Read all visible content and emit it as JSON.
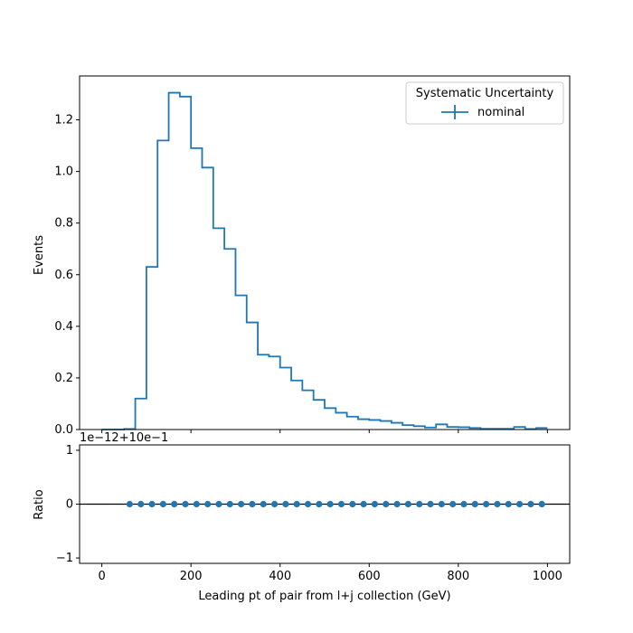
{
  "chart_data": [
    {
      "type": "step",
      "title": "",
      "xlabel": "",
      "ylabel": "Events",
      "xlim": [
        -50,
        1050
      ],
      "ylim": [
        0,
        1.37
      ],
      "x_ticks": [
        0,
        200,
        400,
        600,
        800,
        1000
      ],
      "y_ticks": [
        0.0,
        0.2,
        0.4,
        0.6,
        0.8,
        1.0,
        1.2
      ],
      "y_tick_labels": [
        "0.0",
        "0.2",
        "0.4",
        "0.6",
        "0.8",
        "1.0",
        "1.2"
      ],
      "bin_edges": [
        0,
        25,
        50,
        75,
        100,
        125,
        150,
        175,
        200,
        225,
        250,
        275,
        300,
        325,
        350,
        375,
        400,
        425,
        450,
        475,
        500,
        525,
        550,
        575,
        600,
        625,
        650,
        675,
        700,
        725,
        750,
        775,
        800,
        825,
        850,
        875,
        900,
        925,
        950,
        975,
        1000
      ],
      "series": [
        {
          "name": "nominal",
          "color": "#1f77b4",
          "values": [
            0.0,
            0.0,
            0.002,
            0.12,
            0.63,
            1.12,
            1.305,
            1.29,
            1.09,
            1.015,
            0.78,
            0.7,
            0.52,
            0.415,
            0.29,
            0.283,
            0.24,
            0.19,
            0.152,
            0.115,
            0.083,
            0.065,
            0.05,
            0.04,
            0.037,
            0.033,
            0.026,
            0.017,
            0.013,
            0.008,
            0.02,
            0.01,
            0.009,
            0.006,
            0.003,
            0.003,
            0.003,
            0.01,
            0.002,
            0.006
          ]
        }
      ],
      "legend": {
        "title": "Systematic Uncertainty",
        "placement": "top-right"
      }
    },
    {
      "type": "scatter",
      "title": "",
      "xlabel": "Leading pt of pair from l+j collection (GeV)",
      "ylabel": "Ratio",
      "xlim": [
        -50,
        1050
      ],
      "ylim": [
        -1.1,
        1.1
      ],
      "x_ticks": [
        0,
        200,
        400,
        600,
        800,
        1000
      ],
      "x_tick_labels": [
        "0",
        "200",
        "400",
        "600",
        "800",
        "1000"
      ],
      "y_ticks": [
        -1,
        0,
        1
      ],
      "y_tick_labels": [
        "−1",
        "0",
        "1"
      ],
      "offset_text": "1e−12+10e−1",
      "reference_line": 0,
      "series": [
        {
          "name": "",
          "color": "#1f77b4",
          "x": [
            62.5,
            87.5,
            112.5,
            137.5,
            162.5,
            187.5,
            212.5,
            237.5,
            262.5,
            287.5,
            312.5,
            337.5,
            362.5,
            387.5,
            412.5,
            437.5,
            462.5,
            487.5,
            512.5,
            537.5,
            562.5,
            587.5,
            612.5,
            637.5,
            662.5,
            687.5,
            712.5,
            737.5,
            762.5,
            787.5,
            812.5,
            837.5,
            862.5,
            887.5,
            912.5,
            937.5,
            962.5,
            987.5
          ],
          "y": [
            0,
            0,
            0,
            0,
            0,
            0,
            0,
            0,
            0,
            0,
            0,
            0,
            0,
            0,
            0,
            0,
            0,
            0,
            0,
            0,
            0,
            0,
            0,
            0,
            0,
            0,
            0,
            0,
            0,
            0,
            0,
            0,
            0,
            0,
            0,
            0,
            0,
            0
          ]
        }
      ]
    }
  ]
}
